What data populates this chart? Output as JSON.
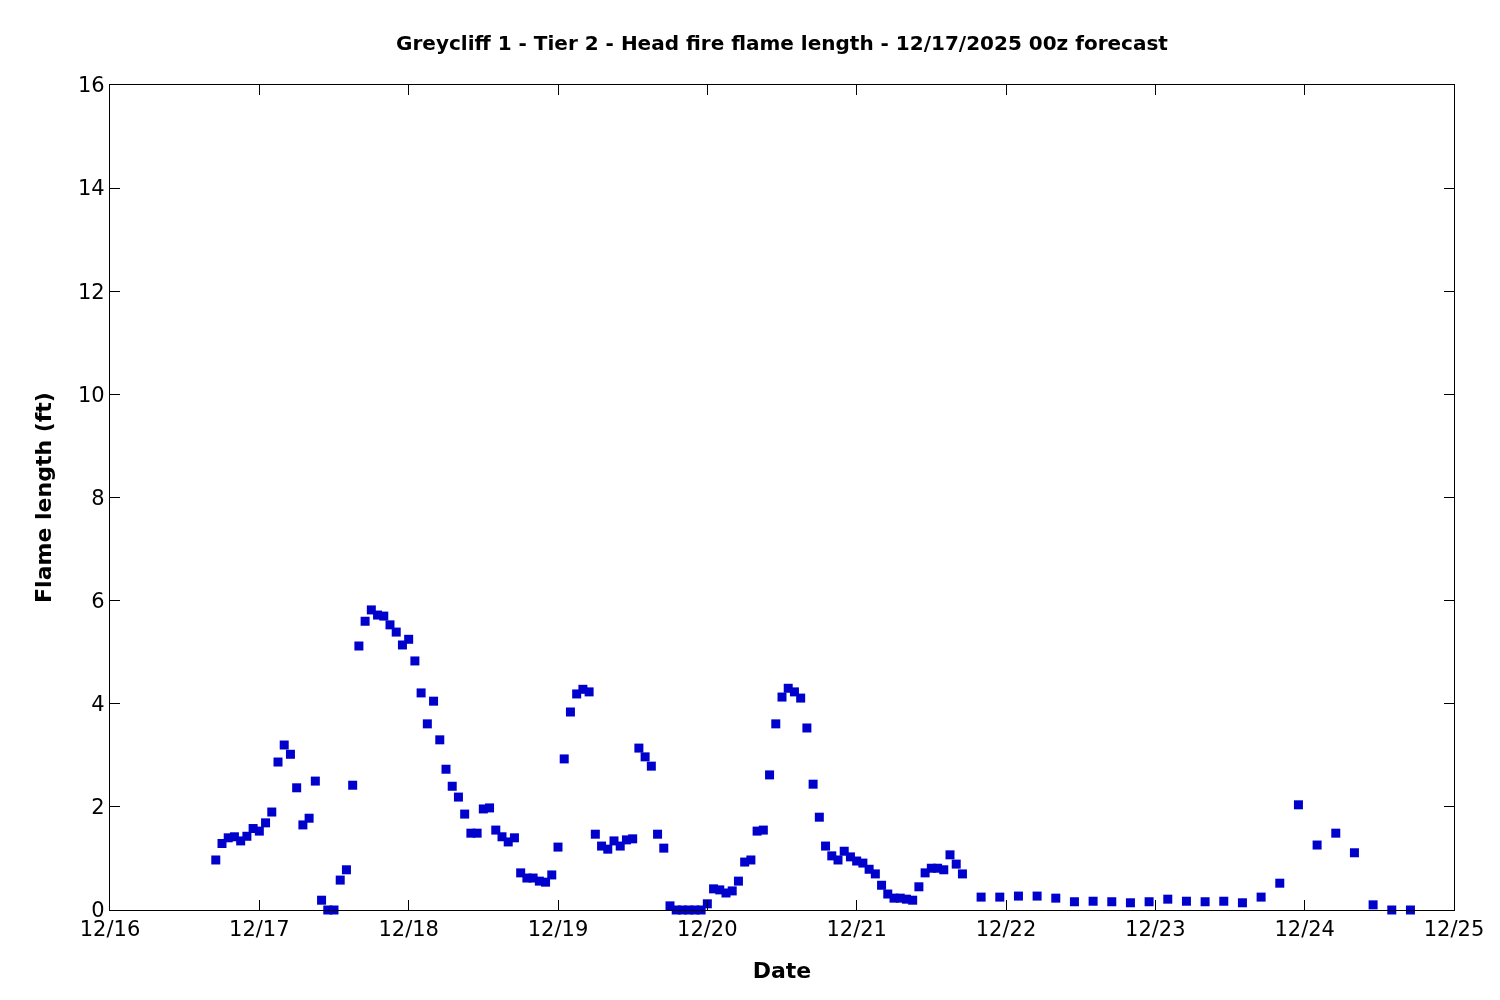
{
  "chart_data": {
    "type": "scatter",
    "title": "Greycliff 1 - Tier 2 - Head fire flame length - 12/17/2025 00z forecast",
    "xlabel": "Date",
    "ylabel": "Flame length (ft)",
    "x": [
      "2025-12-16T17:00",
      "2025-12-16T18:00",
      "2025-12-16T19:00",
      "2025-12-16T20:00",
      "2025-12-16T21:00",
      "2025-12-16T22:00",
      "2025-12-16T23:00",
      "2025-12-17T00:00",
      "2025-12-17T01:00",
      "2025-12-17T02:00",
      "2025-12-17T03:00",
      "2025-12-17T04:00",
      "2025-12-17T05:00",
      "2025-12-17T06:00",
      "2025-12-17T07:00",
      "2025-12-17T08:00",
      "2025-12-17T09:00",
      "2025-12-17T10:00",
      "2025-12-17T11:00",
      "2025-12-17T12:00",
      "2025-12-17T13:00",
      "2025-12-17T14:00",
      "2025-12-17T15:00",
      "2025-12-17T16:00",
      "2025-12-17T17:00",
      "2025-12-17T18:00",
      "2025-12-17T19:00",
      "2025-12-17T20:00",
      "2025-12-17T21:00",
      "2025-12-17T22:00",
      "2025-12-17T23:00",
      "2025-12-18T00:00",
      "2025-12-18T01:00",
      "2025-12-18T02:00",
      "2025-12-18T03:00",
      "2025-12-18T04:00",
      "2025-12-18T05:00",
      "2025-12-18T06:00",
      "2025-12-18T07:00",
      "2025-12-18T08:00",
      "2025-12-18T09:00",
      "2025-12-18T10:00",
      "2025-12-18T11:00",
      "2025-12-18T12:00",
      "2025-12-18T13:00",
      "2025-12-18T14:00",
      "2025-12-18T15:00",
      "2025-12-18T16:00",
      "2025-12-18T17:00",
      "2025-12-18T18:00",
      "2025-12-18T19:00",
      "2025-12-18T20:00",
      "2025-12-18T21:00",
      "2025-12-18T22:00",
      "2025-12-18T23:00",
      "2025-12-19T00:00",
      "2025-12-19T01:00",
      "2025-12-19T02:00",
      "2025-12-19T03:00",
      "2025-12-19T04:00",
      "2025-12-19T05:00",
      "2025-12-19T06:00",
      "2025-12-19T07:00",
      "2025-12-19T08:00",
      "2025-12-19T09:00",
      "2025-12-19T10:00",
      "2025-12-19T11:00",
      "2025-12-19T12:00",
      "2025-12-19T13:00",
      "2025-12-19T14:00",
      "2025-12-19T15:00",
      "2025-12-19T16:00",
      "2025-12-19T17:00",
      "2025-12-19T18:00",
      "2025-12-19T19:00",
      "2025-12-19T20:00",
      "2025-12-19T21:00",
      "2025-12-19T22:00",
      "2025-12-19T23:00",
      "2025-12-20T00:00",
      "2025-12-20T01:00",
      "2025-12-20T02:00",
      "2025-12-20T03:00",
      "2025-12-20T04:00",
      "2025-12-20T05:00",
      "2025-12-20T06:00",
      "2025-12-20T07:00",
      "2025-12-20T08:00",
      "2025-12-20T09:00",
      "2025-12-20T10:00",
      "2025-12-20T11:00",
      "2025-12-20T12:00",
      "2025-12-20T13:00",
      "2025-12-20T14:00",
      "2025-12-20T15:00",
      "2025-12-20T16:00",
      "2025-12-20T17:00",
      "2025-12-20T18:00",
      "2025-12-20T19:00",
      "2025-12-20T20:00",
      "2025-12-20T21:00",
      "2025-12-20T22:00",
      "2025-12-20T23:00",
      "2025-12-21T00:00",
      "2025-12-21T01:00",
      "2025-12-21T02:00",
      "2025-12-21T03:00",
      "2025-12-21T04:00",
      "2025-12-21T05:00",
      "2025-12-21T06:00",
      "2025-12-21T07:00",
      "2025-12-21T08:00",
      "2025-12-21T09:00",
      "2025-12-21T10:00",
      "2025-12-21T11:00",
      "2025-12-21T12:00",
      "2025-12-21T13:00",
      "2025-12-21T14:00",
      "2025-12-21T15:00",
      "2025-12-21T16:00",
      "2025-12-21T17:00",
      "2025-12-21T20:00",
      "2025-12-21T23:00",
      "2025-12-22T02:00",
      "2025-12-22T05:00",
      "2025-12-22T08:00",
      "2025-12-22T11:00",
      "2025-12-22T14:00",
      "2025-12-22T17:00",
      "2025-12-22T20:00",
      "2025-12-22T23:00",
      "2025-12-23T02:00",
      "2025-12-23T05:00",
      "2025-12-23T08:00",
      "2025-12-23T11:00",
      "2025-12-23T14:00",
      "2025-12-23T17:00",
      "2025-12-23T20:00",
      "2025-12-23T23:00",
      "2025-12-24T02:00",
      "2025-12-24T05:00",
      "2025-12-24T08:00",
      "2025-12-24T11:00",
      "2025-12-24T14:00",
      "2025-12-24T17:00"
    ],
    "values": [
      0.97,
      1.29,
      1.4,
      1.42,
      1.34,
      1.43,
      1.58,
      1.53,
      1.69,
      1.9,
      2.87,
      3.2,
      3.02,
      2.37,
      1.65,
      1.78,
      2.5,
      0.19,
      0,
      0,
      0.58,
      0.78,
      2.42,
      5.12,
      5.6,
      5.82,
      5.72,
      5.7,
      5.53,
      5.39,
      5.14,
      5.25,
      4.83,
      4.21,
      3.61,
      4.05,
      3.3,
      2.73,
      2.4,
      2.19,
      1.86,
      1.49,
      1.49,
      1.96,
      1.98,
      1.55,
      1.42,
      1.32,
      1.4,
      0.72,
      0.62,
      0.62,
      0.56,
      0.54,
      0.68,
      1.22,
      2.93,
      3.84,
      4.19,
      4.28,
      4.23,
      1.47,
      1.24,
      1.18,
      1.34,
      1.24,
      1.36,
      1.38,
      3.14,
      2.97,
      2.79,
      1.47,
      1.2,
      0.08,
      0,
      0,
      0,
      0,
      0,
      0.12,
      0.41,
      0.39,
      0.33,
      0.37,
      0.56,
      0.93,
      0.97,
      1.53,
      1.55,
      2.62,
      3.61,
      4.13,
      4.3,
      4.23,
      4.11,
      3.53,
      2.44,
      1.8,
      1.24,
      1.05,
      0.97,
      1.14,
      1.03,
      0.95,
      0.91,
      0.79,
      0.7,
      0.48,
      0.31,
      0.23,
      0.23,
      0.21,
      0.19,
      0.45,
      0.72,
      0.81,
      0.81,
      0.78,
      1.07,
      0.89,
      0.7,
      0.25,
      0.25,
      0.27,
      0.27,
      0.23,
      0.16,
      0.17,
      0.16,
      0.14,
      0.16,
      0.21,
      0.17,
      0.16,
      0.17,
      0.14,
      0.25,
      0.52,
      2.04,
      1.26,
      1.49,
      1.11,
      0.1,
      0,
      0
    ],
    "color": "#0000cc",
    "marker": "square",
    "xlim": [
      "2025-12-16",
      "2025-12-25"
    ],
    "xticks": [
      {
        "value": "2025-12-16",
        "label": "12/16"
      },
      {
        "value": "2025-12-17",
        "label": "12/17"
      },
      {
        "value": "2025-12-18",
        "label": "12/18"
      },
      {
        "value": "2025-12-19",
        "label": "12/19"
      },
      {
        "value": "2025-12-20",
        "label": "12/20"
      },
      {
        "value": "2025-12-21",
        "label": "12/21"
      },
      {
        "value": "2025-12-22",
        "label": "12/22"
      },
      {
        "value": "2025-12-23",
        "label": "12/23"
      },
      {
        "value": "2025-12-24",
        "label": "12/24"
      },
      {
        "value": "2025-12-25",
        "label": "12/25"
      }
    ],
    "ylim": [
      0,
      16
    ],
    "yticks": [
      0,
      2,
      4,
      6,
      8,
      10,
      12,
      14,
      16
    ]
  }
}
